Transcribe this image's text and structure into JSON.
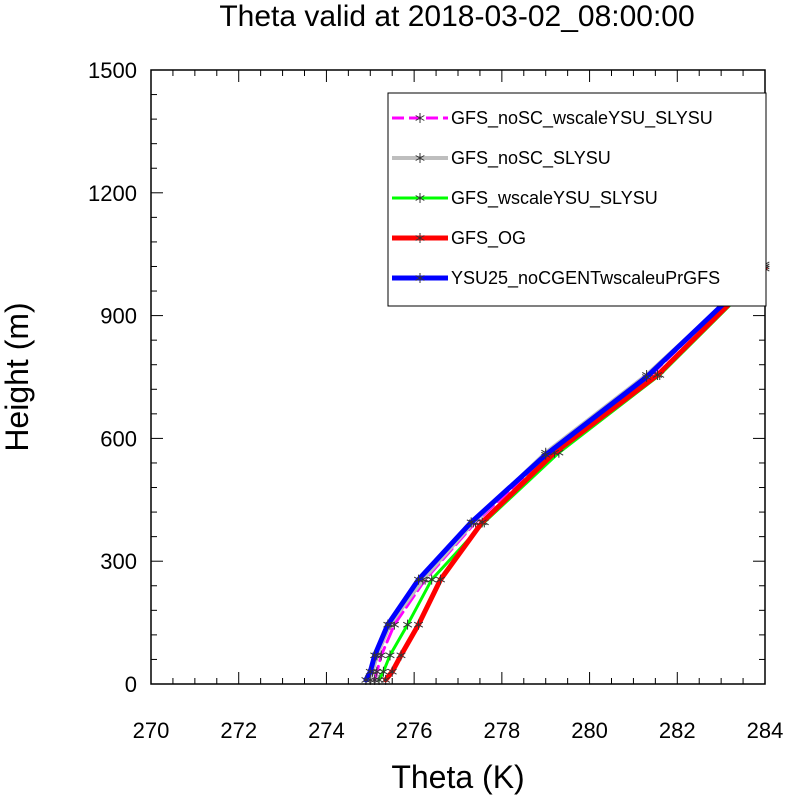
{
  "chart_data": {
    "type": "line",
    "title": "Theta valid at 2018-03-02_08:00:00",
    "xlabel": "Theta (K)",
    "ylabel": "Height (m)",
    "xlim": [
      270,
      284
    ],
    "ylim": [
      0,
      1500
    ],
    "xticks": [
      "270",
      "272",
      "274",
      "276",
      "278",
      "280",
      "282",
      "284"
    ],
    "yticks": [
      "0",
      "300",
      "600",
      "900",
      "1200",
      "1500"
    ],
    "grid": false,
    "legend_position": "top-right",
    "series": [
      {
        "name": "GFS_noSC_wscaleYSU_SLYSU",
        "color": "#ff00ff",
        "dashed": true,
        "width": 3,
        "points": [
          [
            275.1,
            10
          ],
          [
            275.15,
            30
          ],
          [
            275.25,
            70
          ],
          [
            275.55,
            145
          ],
          [
            276.25,
            255
          ],
          [
            277.4,
            395
          ],
          [
            279.1,
            565
          ],
          [
            281.4,
            755
          ],
          [
            284.0,
            1025
          ]
        ]
      },
      {
        "name": "GFS_noSC_SLYSU",
        "color": "#bebebe",
        "dashed": false,
        "width": 4,
        "points": [
          [
            275.0,
            10
          ],
          [
            275.05,
            30
          ],
          [
            275.15,
            70
          ],
          [
            275.45,
            145
          ],
          [
            276.2,
            255
          ],
          [
            277.35,
            395
          ],
          [
            279.0,
            565
          ],
          [
            281.3,
            755
          ],
          [
            284.0,
            1020
          ]
        ]
      },
      {
        "name": "GFS_wscaleYSU_SLYSU",
        "color": "#00ff00",
        "dashed": false,
        "width": 3,
        "points": [
          [
            275.2,
            10
          ],
          [
            275.3,
            30
          ],
          [
            275.45,
            70
          ],
          [
            275.85,
            145
          ],
          [
            276.4,
            255
          ],
          [
            277.6,
            395
          ],
          [
            279.3,
            565
          ],
          [
            281.6,
            755
          ],
          [
            283.9,
            1000
          ]
        ]
      },
      {
        "name": "GFS_OG",
        "color": "#ff0000",
        "dashed": false,
        "width": 5,
        "points": [
          [
            275.35,
            10
          ],
          [
            275.5,
            30
          ],
          [
            275.7,
            70
          ],
          [
            276.1,
            145
          ],
          [
            276.6,
            255
          ],
          [
            277.55,
            395
          ],
          [
            279.2,
            565
          ],
          [
            281.55,
            755
          ],
          [
            284.0,
            1015
          ]
        ]
      },
      {
        "name": "YSU25_noCGENTwscaleuPrGFS",
        "color": "#0000ff",
        "dashed": false,
        "width": 5,
        "points": [
          [
            274.9,
            10
          ],
          [
            275.0,
            30
          ],
          [
            275.1,
            70
          ],
          [
            275.4,
            145
          ],
          [
            276.1,
            255
          ],
          [
            277.3,
            395
          ],
          [
            279.0,
            560
          ],
          [
            281.3,
            750
          ],
          [
            283.9,
            1015
          ]
        ]
      }
    ]
  }
}
